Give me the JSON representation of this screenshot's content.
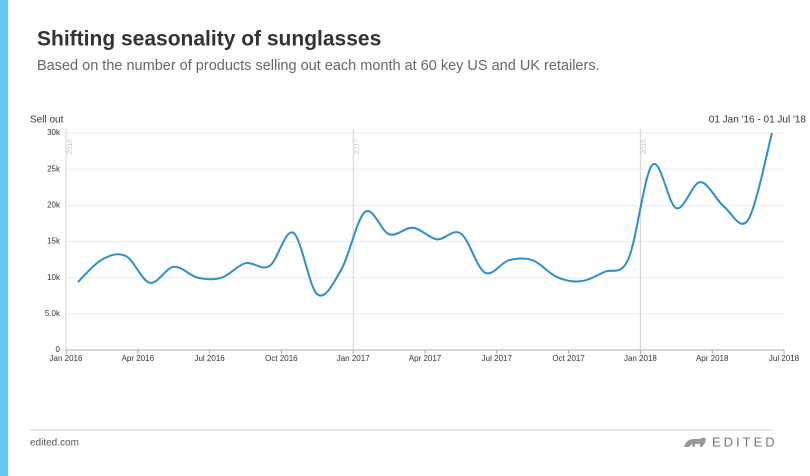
{
  "chart_data": {
    "type": "line",
    "title": "Shifting seasonality of sunglasses",
    "subtitle": "Based on the number of products selling out each month at 60 key US and UK retailers.",
    "y_label": "Sell out",
    "range_label": "01 Jan '16 - 01 Jul '18",
    "categories": [
      "Jan 2016",
      null,
      null,
      "Apr 2016",
      null,
      null,
      "Jul 2016",
      null,
      null,
      "Oct 2016",
      null,
      null,
      "Jan 2017",
      null,
      null,
      "Apr 2017",
      null,
      null,
      "Jul 2017",
      null,
      null,
      "Oct 2017",
      null,
      null,
      "Jan 2018",
      null,
      null,
      "Apr 2018",
      null,
      null,
      "Jul 2018"
    ],
    "series": [
      {
        "name": "Sell out",
        "color": "#2e8fca",
        "values": [
          9400,
          12500,
          13000,
          9300,
          11500,
          10000,
          10000,
          12000,
          11600,
          16200,
          7700,
          11100,
          19100,
          16000,
          16900,
          15300,
          16100,
          10700,
          12400,
          12400,
          10100,
          9500,
          10800,
          12600,
          25600,
          19600,
          23200,
          19800,
          18000,
          30000,
          null
        ]
      }
    ],
    "year_markers": [
      "2016",
      "2017",
      "2018"
    ],
    "ylim": [
      0,
      30000
    ],
    "yticks": [
      0,
      {
        "value": 5000,
        "label": "5.0k"
      },
      {
        "value": 10000,
        "label": "10k"
      },
      {
        "value": 15000,
        "label": "15k"
      },
      {
        "value": 20000,
        "label": "20k"
      },
      {
        "value": 25000,
        "label": "25k"
      },
      {
        "value": 30000,
        "label": "30k"
      }
    ],
    "grid": true
  },
  "footer": {
    "site": "edited.com",
    "brand": "EDITED"
  }
}
